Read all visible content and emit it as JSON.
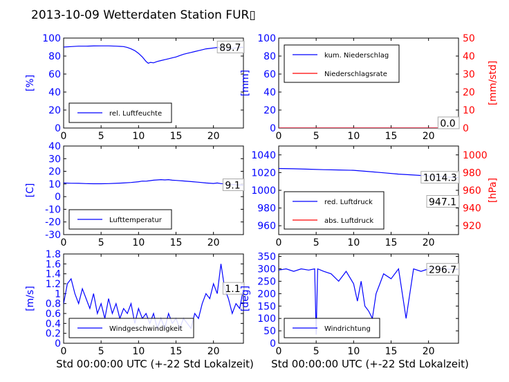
{
  "figure_title": "2013-10-09 Wetterdaten Station FUR▯",
  "colors": {
    "left_axis": "#0000ff",
    "right_axis": "#ff0000",
    "series_blue": "#0000ff",
    "series_red": "#ff0000"
  },
  "chart_data": [
    {
      "id": "humidity",
      "type": "line",
      "ylabel": "[%]",
      "ylim": [
        0,
        100
      ],
      "yticks": [
        0,
        20,
        40,
        60,
        80,
        100
      ],
      "xlim": [
        0,
        24
      ],
      "xticks": [
        0,
        5,
        10,
        15,
        20
      ],
      "xlabel": "",
      "last_value_label": "89.7",
      "legend": {
        "placement": "lower-left",
        "entries": [
          "rel. Luftfeuchte"
        ]
      },
      "series": [
        {
          "name": "rel. Luftfeuchte",
          "axis": "left",
          "color": "#0000ff",
          "x": [
            0,
            1,
            2,
            3,
            4,
            5,
            6,
            7,
            7.5,
            8,
            8.5,
            9,
            9.5,
            10,
            10.5,
            11,
            11.3,
            11.6,
            12,
            12.5,
            13,
            13.5,
            14,
            14.5,
            15,
            15.5,
            16,
            16.5,
            17,
            17.5,
            18,
            18.5,
            19,
            19.5,
            20,
            20.5,
            21,
            21.3,
            21.6,
            22,
            22.5,
            23,
            23.5,
            24
          ],
          "y": [
            90,
            90.5,
            91,
            91,
            91.2,
            91.3,
            91.3,
            91,
            90.8,
            90.5,
            89.5,
            88,
            86,
            83,
            79,
            74,
            72,
            73,
            72.5,
            74,
            75,
            76,
            77,
            78,
            79,
            80.5,
            82,
            83,
            84,
            85,
            86,
            87,
            88,
            88.5,
            89,
            89.5,
            90,
            89,
            88,
            87.5,
            88.5,
            89,
            89.5,
            89.7
          ]
        }
      ]
    },
    {
      "id": "precipitation",
      "type": "line",
      "ylabel": "[mm]",
      "ylim": [
        0,
        100
      ],
      "yticks": [
        0,
        20,
        40,
        60,
        80,
        100
      ],
      "ylabel_right": "[mm/std]",
      "ylim_right": [
        0,
        50
      ],
      "yticks_right": [
        0,
        10,
        20,
        30,
        40,
        50
      ],
      "xlim": [
        0,
        24
      ],
      "xticks": [
        0,
        5,
        10,
        15,
        20
      ],
      "xlabel": "",
      "last_value_label": "0.0",
      "last_value_label_right": "0.0",
      "legend": {
        "placement": "upper-left",
        "entries": [
          "kum. Niederschlag",
          "Niederschlagsrate"
        ]
      },
      "series": [
        {
          "name": "kum. Niederschlag",
          "axis": "left",
          "color": "#0000ff",
          "x": [
            0,
            24
          ],
          "y": [
            0,
            0
          ]
        },
        {
          "name": "Niederschlagsrate",
          "axis": "right",
          "color": "#ff0000",
          "x": [
            0,
            24
          ],
          "y": [
            0,
            0
          ]
        }
      ]
    },
    {
      "id": "temperature",
      "type": "line",
      "ylabel": "[C]",
      "ylim": [
        -30,
        40
      ],
      "yticks": [
        -30,
        -20,
        -10,
        0,
        10,
        20,
        30,
        40
      ],
      "xlim": [
        0,
        24
      ],
      "xticks": [
        0,
        5,
        10,
        15,
        20
      ],
      "xlabel": "",
      "last_value_label": "9.1",
      "legend": {
        "placement": "lower-left",
        "entries": [
          "Lufttemperatur"
        ]
      },
      "series": [
        {
          "name": "Lufttemperatur",
          "axis": "left",
          "color": "#0000ff",
          "x": [
            0,
            1,
            2,
            3,
            4,
            5,
            6,
            7,
            8,
            9,
            10,
            10.5,
            11,
            11.5,
            12,
            12.5,
            13,
            13.5,
            14,
            14.5,
            15,
            16,
            17,
            18,
            19,
            20,
            20.5,
            21,
            22,
            23,
            24
          ],
          "y": [
            10.8,
            10.6,
            10.5,
            10.3,
            10.2,
            10.2,
            10.3,
            10.5,
            10.8,
            11.2,
            11.8,
            12.3,
            12.2,
            12.6,
            13,
            13.2,
            13.4,
            13.2,
            13.4,
            13,
            12.8,
            12.4,
            11.9,
            11.4,
            10.8,
            10.4,
            10.8,
            10.3,
            9.8,
            9.4,
            9.1
          ]
        }
      ]
    },
    {
      "id": "pressure",
      "type": "line",
      "ylabel": "",
      "ylim": [
        950,
        1050
      ],
      "yticks": [
        960,
        980,
        1000,
        1020,
        1040
      ],
      "ylabel_right": "[hPa]",
      "ylim_right": [
        910,
        1010
      ],
      "yticks_right": [
        920,
        940,
        960,
        980,
        1000
      ],
      "xlim": [
        0,
        24
      ],
      "xticks": [
        0,
        5,
        10,
        15,
        20
      ],
      "xlabel": "",
      "last_value_label": "1014.3",
      "last_value_label_right": "947.1",
      "legend": {
        "placement": "lower-left",
        "entries": [
          "red. Luftdruck",
          "abs. Luftdruck"
        ]
      },
      "series": [
        {
          "name": "red. Luftdruck",
          "axis": "left",
          "color": "#0000ff",
          "x": [
            0,
            2,
            4,
            6,
            8,
            10,
            12,
            14,
            16,
            18,
            20,
            22,
            24
          ],
          "y": [
            1024.6,
            1024.3,
            1023.8,
            1023.3,
            1023,
            1022.6,
            1021.2,
            1019.8,
            1018.3,
            1017.3,
            1016.2,
            1015.1,
            1014.3
          ]
        }
      ]
    },
    {
      "id": "windspeed",
      "type": "line",
      "ylabel": "[m/s]",
      "ylim": [
        0,
        1.8
      ],
      "yticks": [
        0.0,
        0.2,
        0.4,
        0.6,
        0.8,
        1.0,
        1.2,
        1.4,
        1.6,
        1.8
      ],
      "xlim": [
        0,
        24
      ],
      "xticks": [
        0,
        5,
        10,
        15,
        20
      ],
      "xlabel": "Std 00:00:00 UTC (+-22 Std Lokalzeit)",
      "last_value_label": "1.1",
      "legend": {
        "placement": "lower-left",
        "entries": [
          "Windgeschwindigkeit"
        ]
      },
      "series": [
        {
          "name": "Windgeschwindigkeit",
          "axis": "left",
          "color": "#0000ff",
          "x": [
            0,
            0.5,
            1,
            1.5,
            2,
            2.5,
            3,
            3.5,
            4,
            4.5,
            5,
            5.5,
            6,
            6.5,
            7,
            7.5,
            8,
            8.5,
            9,
            9.5,
            10,
            10.5,
            11,
            11.5,
            12,
            12.5,
            13,
            13.5,
            14,
            14.5,
            15,
            15.5,
            16,
            16.5,
            17,
            17.5,
            18,
            18.5,
            19,
            19.5,
            20,
            20.5,
            21,
            21.5,
            22,
            22.5,
            23,
            23.5,
            24
          ],
          "y": [
            0.8,
            1.2,
            1.3,
            1.0,
            0.8,
            1.1,
            0.9,
            0.7,
            1.0,
            0.6,
            0.8,
            0.5,
            0.9,
            0.6,
            0.8,
            0.5,
            0.7,
            0.6,
            0.8,
            0.4,
            0.7,
            0.5,
            0.6,
            0.4,
            0.6,
            0.3,
            0.5,
            0.3,
            0.6,
            0.4,
            0.5,
            0.3,
            0.5,
            0.4,
            0.3,
            0.6,
            0.5,
            0.8,
            1.0,
            0.9,
            1.2,
            1.0,
            1.6,
            1.1,
            0.9,
            0.6,
            0.8,
            0.7,
            1.1
          ]
        }
      ]
    },
    {
      "id": "winddirection",
      "type": "line",
      "ylabel": "[deg]",
      "ylim": [
        0,
        360
      ],
      "yticks": [
        0,
        50,
        100,
        150,
        200,
        250,
        300,
        350
      ],
      "xlim": [
        0,
        24
      ],
      "xticks": [
        0,
        5,
        10,
        15,
        20
      ],
      "xlabel": "Std 00:00:00 UTC (+-22 Std Lokalzeit)",
      "last_value_label": "296.7",
      "legend": {
        "placement": "lower-left",
        "entries": [
          "Windrichtung"
        ]
      },
      "series": [
        {
          "name": "Windrichtung",
          "axis": "left",
          "color": "#0000ff",
          "x": [
            0,
            1,
            2,
            3,
            4,
            4.8,
            5,
            5.2,
            6,
            7,
            8,
            9,
            10,
            10.5,
            11,
            11.5,
            12,
            12.5,
            13,
            13.5,
            14,
            15,
            16,
            17,
            18,
            19,
            20,
            21,
            22,
            23,
            24
          ],
          "y": [
            295,
            300,
            290,
            300,
            295,
            300,
            35,
            300,
            290,
            280,
            250,
            290,
            240,
            170,
            250,
            150,
            130,
            100,
            200,
            240,
            280,
            260,
            300,
            100,
            300,
            290,
            300,
            305,
            300,
            298,
            296.7
          ]
        }
      ]
    }
  ]
}
